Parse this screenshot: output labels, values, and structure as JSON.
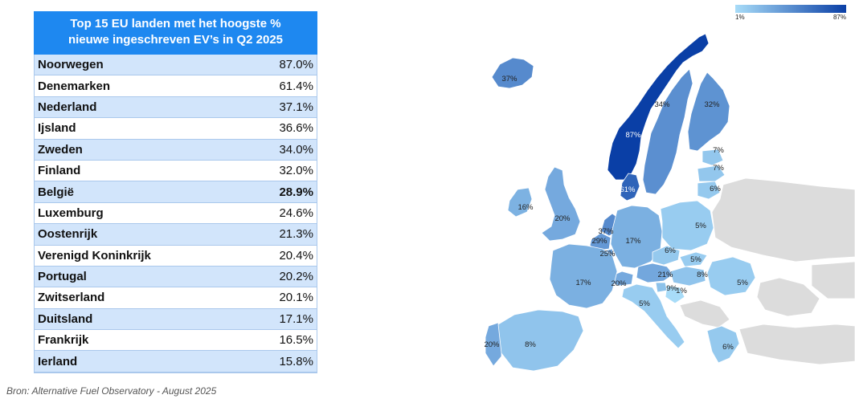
{
  "chart_data": {
    "type": "table",
    "title": "Top 15 EU landen met het hoogste % nieuwe ingeschreven EV's in Q2 2025",
    "title_lines": [
      "Top 15 EU landen met het hoogste %",
      "nieuwe ingeschreven EV’s in Q2 2025"
    ],
    "rows": [
      {
        "country": "Noorwegen",
        "value": "87.0%"
      },
      {
        "country": "Denemarken",
        "value": "61.4%"
      },
      {
        "country": "Nederland",
        "value": "37.1%"
      },
      {
        "country": "Ijsland",
        "value": "36.6%"
      },
      {
        "country": "Zweden",
        "value": "34.0%"
      },
      {
        "country": "Finland",
        "value": "32.0%"
      },
      {
        "country": "België",
        "value": "28.9%",
        "highlight": true
      },
      {
        "country": "Luxemburg",
        "value": "24.6%"
      },
      {
        "country": "Oostenrijk",
        "value": "21.3%"
      },
      {
        "country": "Verenigd Koninkrijk",
        "value": "20.4%"
      },
      {
        "country": "Portugal",
        "value": "20.2%"
      },
      {
        "country": "Zwitserland",
        "value": "20.1%"
      },
      {
        "country": "Duitsland",
        "value": "17.1%"
      },
      {
        "country": "Frankrijk",
        "value": "16.5%"
      },
      {
        "country": "Ierland",
        "value": "15.8%"
      }
    ]
  },
  "map": {
    "legend": {
      "min_label": "1%",
      "max_label": "87%",
      "min_color": "#a8dcf8",
      "max_color": "#0a3fa6"
    },
    "no_data_color": "#dcdcdc",
    "countries": [
      {
        "id": "norway",
        "label": "87%",
        "value": 87
      },
      {
        "id": "denmark",
        "label": "61%",
        "value": 61
      },
      {
        "id": "netherlands",
        "label": "37%",
        "value": 37
      },
      {
        "id": "iceland",
        "label": "37%",
        "value": 37
      },
      {
        "id": "sweden",
        "label": "34%",
        "value": 34
      },
      {
        "id": "finland",
        "label": "32%",
        "value": 32
      },
      {
        "id": "belgium",
        "label": "29%",
        "value": 29
      },
      {
        "id": "luxembourg",
        "label": "25%",
        "value": 25
      },
      {
        "id": "austria",
        "label": "21%",
        "value": 21
      },
      {
        "id": "uk",
        "label": "20%",
        "value": 20
      },
      {
        "id": "portugal",
        "label": "20%",
        "value": 20
      },
      {
        "id": "switzerland",
        "label": "20%",
        "value": 20
      },
      {
        "id": "germany",
        "label": "17%",
        "value": 17
      },
      {
        "id": "france",
        "label": "17%",
        "value": 17
      },
      {
        "id": "ireland",
        "label": "16%",
        "value": 16
      },
      {
        "id": "spain",
        "label": "8%",
        "value": 8
      },
      {
        "id": "estonia",
        "label": "7%",
        "value": 7
      },
      {
        "id": "latvia",
        "label": "7%",
        "value": 7
      },
      {
        "id": "lithuania",
        "label": "6%",
        "value": 6
      },
      {
        "id": "czechia",
        "label": "6%",
        "value": 6
      },
      {
        "id": "greece",
        "label": "6%",
        "value": 6
      },
      {
        "id": "poland",
        "label": "5%",
        "value": 5
      },
      {
        "id": "slovakia",
        "label": "5%",
        "value": 5
      },
      {
        "id": "romania",
        "label": "5%",
        "value": 5
      },
      {
        "id": "italy",
        "label": "5%",
        "value": 5
      },
      {
        "id": "hungary",
        "label": "8%",
        "value": 8
      },
      {
        "id": "slovenia",
        "label": "9%",
        "value": 9
      },
      {
        "id": "croatia",
        "label": "1%",
        "value": 1
      }
    ]
  },
  "source": "Bron: Alternative Fuel Observatory - August 2025"
}
